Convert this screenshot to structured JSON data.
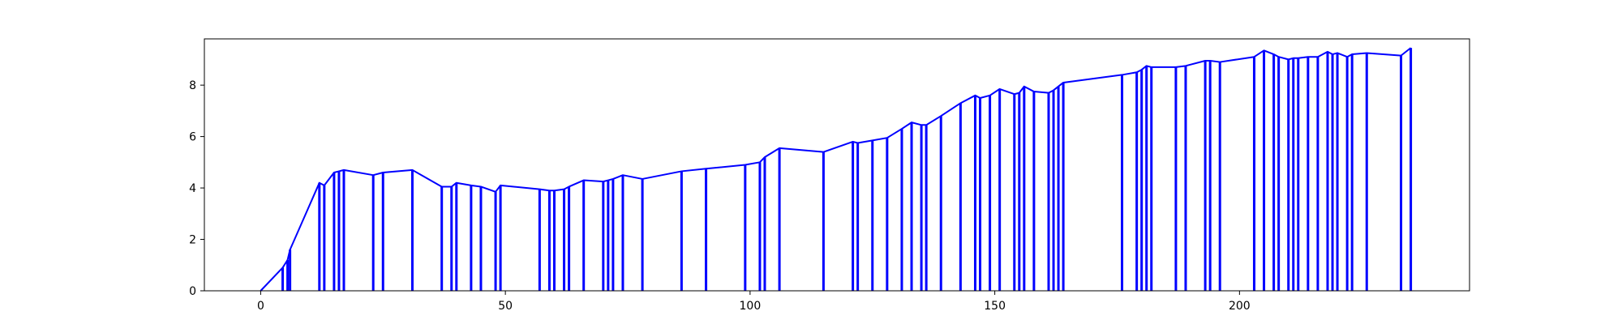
{
  "chart_data": {
    "type": "line",
    "title": "",
    "xlabel": "",
    "ylabel": "",
    "xlim": [
      -11.5,
      247
    ],
    "ylim": [
      0,
      9.8
    ],
    "xticks": [
      0,
      50,
      100,
      150,
      200
    ],
    "yticks": [
      0,
      2,
      4,
      6,
      8
    ],
    "grid": false,
    "legend": "none",
    "line_color": "#0000ff",
    "series": [
      {
        "x": [
          0,
          4.5,
          5.5,
          6,
          12,
          13,
          15,
          16,
          17,
          23,
          25,
          31,
          37,
          39,
          40,
          43,
          45,
          48,
          49,
          57,
          59,
          60,
          62,
          63,
          66,
          70,
          71,
          72,
          74,
          78,
          86,
          91,
          99,
          102,
          103,
          106,
          115,
          121,
          122,
          125,
          128,
          131,
          133,
          135,
          136,
          139,
          143,
          146,
          147,
          149,
          151,
          154,
          155,
          156,
          158,
          161,
          162,
          163,
          164,
          176,
          179,
          180,
          181,
          182,
          187,
          189,
          193,
          194,
          196,
          203,
          205,
          207,
          208,
          210,
          211,
          212,
          214,
          216,
          218,
          219,
          220,
          222,
          223,
          226,
          233,
          235
        ],
        "values": [
          0,
          0.9,
          1.2,
          1.6,
          4.2,
          4.1,
          4.6,
          4.65,
          4.7,
          4.5,
          4.6,
          4.7,
          4.05,
          4.05,
          4.2,
          4.1,
          4.05,
          3.85,
          4.1,
          3.95,
          3.9,
          3.9,
          3.95,
          4.05,
          4.3,
          4.25,
          4.3,
          4.35,
          4.5,
          4.35,
          4.65,
          4.75,
          4.9,
          5.0,
          5.2,
          5.55,
          5.4,
          5.8,
          5.75,
          5.85,
          5.95,
          6.3,
          6.55,
          6.45,
          6.45,
          6.8,
          7.3,
          7.6,
          7.5,
          7.6,
          7.85,
          7.65,
          7.7,
          7.95,
          7.75,
          7.7,
          7.8,
          7.95,
          8.1,
          8.4,
          8.5,
          8.6,
          8.75,
          8.7,
          8.7,
          8.75,
          8.95,
          8.95,
          8.9,
          9.1,
          9.35,
          9.2,
          9.1,
          9.0,
          9.05,
          9.05,
          9.1,
          9.1,
          9.3,
          9.2,
          9.25,
          9.1,
          9.2,
          9.25,
          9.15,
          9.45
        ]
      }
    ]
  }
}
